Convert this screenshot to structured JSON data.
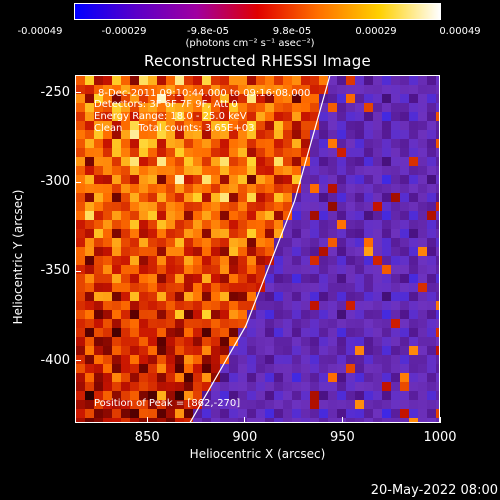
{
  "colorbar": {
    "tick_labels": [
      "-0.00049",
      "-0.00029",
      "-9.8e-05",
      "9.8e-05",
      "0.00029",
      "0.00049"
    ],
    "units": "(photons cm⁻² s⁻¹ asec⁻²)",
    "colors": [
      "#0000ff",
      "#5a00c8",
      "#a000a0",
      "#e00000",
      "#ff7000",
      "#ffd000",
      "#ffffff"
    ]
  },
  "chart_data": {
    "type": "heatmap",
    "title": "Reconstructed RHESSI Image",
    "xlabel": "Heliocentric X (arcsec)",
    "ylabel": "Heliocentric Y (arcsec)",
    "xlim": [
      813,
      1000
    ],
    "ylim": [
      -435,
      -240
    ],
    "x_ticks": [
      850,
      900,
      950,
      1000
    ],
    "x_tick_labels": [
      "850",
      "900",
      "950",
      "1000"
    ],
    "y_ticks": [
      -250,
      -300,
      -350,
      -400
    ],
    "y_tick_labels": [
      "-250",
      "-300",
      "-350",
      "-400"
    ],
    "limb_line": [
      [
        871,
        -435
      ],
      [
        900,
        -380
      ],
      [
        925,
        -310
      ],
      [
        943,
        -240
      ]
    ],
    "annotations": {
      "time": "8-Dec-2011 09:10:44.000 to 09:16:08.000",
      "detectors": "Detectors: 3F 6F 7F 9F, Att 0",
      "energy": "Energy Range: 18.0 - 25.0 keV",
      "algorithm": "Clean     Total counts: 3.65E+03",
      "peak": "Position of Peak = [862,-270]"
    },
    "peak": [
      862,
      -270
    ]
  },
  "footer": {
    "timestamp": "20-May-2022 08:00"
  }
}
